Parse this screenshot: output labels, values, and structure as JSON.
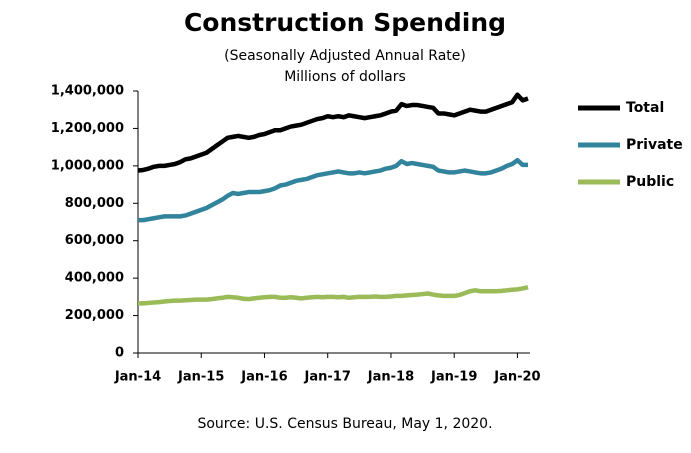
{
  "chart_data": {
    "type": "line",
    "title": "Construction Spending",
    "subtitle": "(Seasonally Adjusted Annual Rate)",
    "y_label": "Millions of dollars",
    "source": "Source: U.S. Census Bureau, May 1, 2020.",
    "categories": [
      "Jan-14",
      null,
      null,
      null,
      null,
      null,
      null,
      null,
      null,
      null,
      null,
      null,
      "Jan-15",
      null,
      null,
      null,
      null,
      null,
      null,
      null,
      null,
      null,
      null,
      null,
      "Jan-16",
      null,
      null,
      null,
      null,
      null,
      null,
      null,
      null,
      null,
      null,
      null,
      "Jan-17",
      null,
      null,
      null,
      null,
      null,
      null,
      null,
      null,
      null,
      null,
      null,
      "Jan-18",
      null,
      null,
      null,
      null,
      null,
      null,
      null,
      null,
      null,
      null,
      null,
      "Jan-19",
      null,
      null,
      null,
      null,
      null,
      null,
      null,
      null,
      null,
      null,
      null,
      "Jan-20",
      null,
      null
    ],
    "series": [
      {
        "name": "Total",
        "color": "#000000",
        "values": [
          975000,
          978000,
          985000,
          995000,
          1000000,
          1000000,
          1005000,
          1010000,
          1020000,
          1035000,
          1040000,
          1050000,
          1060000,
          1070000,
          1090000,
          1110000,
          1130000,
          1150000,
          1155000,
          1160000,
          1155000,
          1150000,
          1155000,
          1165000,
          1170000,
          1180000,
          1190000,
          1190000,
          1200000,
          1210000,
          1215000,
          1220000,
          1230000,
          1240000,
          1250000,
          1255000,
          1265000,
          1260000,
          1265000,
          1260000,
          1270000,
          1265000,
          1260000,
          1255000,
          1260000,
          1265000,
          1270000,
          1280000,
          1290000,
          1295000,
          1330000,
          1320000,
          1325000,
          1325000,
          1320000,
          1315000,
          1310000,
          1280000,
          1280000,
          1275000,
          1270000,
          1280000,
          1290000,
          1300000,
          1295000,
          1290000,
          1290000,
          1300000,
          1310000,
          1320000,
          1330000,
          1340000,
          1380000,
          1350000,
          1360000
        ]
      },
      {
        "name": "Private",
        "color": "#31849b",
        "values": [
          710000,
          710000,
          715000,
          720000,
          725000,
          730000,
          730000,
          730000,
          730000,
          735000,
          745000,
          755000,
          765000,
          775000,
          790000,
          805000,
          820000,
          840000,
          855000,
          850000,
          855000,
          860000,
          860000,
          860000,
          865000,
          870000,
          880000,
          895000,
          900000,
          910000,
          920000,
          925000,
          930000,
          940000,
          950000,
          955000,
          960000,
          965000,
          970000,
          965000,
          960000,
          960000,
          965000,
          960000,
          965000,
          970000,
          975000,
          985000,
          990000,
          1000000,
          1025000,
          1010000,
          1015000,
          1010000,
          1005000,
          1000000,
          995000,
          975000,
          970000,
          965000,
          965000,
          970000,
          975000,
          970000,
          965000,
          960000,
          960000,
          965000,
          975000,
          985000,
          1000000,
          1010000,
          1030000,
          1005000,
          1005000
        ]
      },
      {
        "name": "Public",
        "color": "#9bbb59",
        "values": [
          265000,
          265000,
          268000,
          270000,
          272000,
          275000,
          278000,
          280000,
          280000,
          282000,
          283000,
          285000,
          285000,
          285000,
          288000,
          292000,
          295000,
          300000,
          298000,
          295000,
          290000,
          288000,
          292000,
          295000,
          298000,
          300000,
          300000,
          295000,
          295000,
          298000,
          295000,
          292000,
          295000,
          298000,
          300000,
          298000,
          300000,
          300000,
          298000,
          300000,
          295000,
          298000,
          300000,
          300000,
          300000,
          302000,
          300000,
          300000,
          302000,
          305000,
          305000,
          308000,
          310000,
          312000,
          315000,
          318000,
          312000,
          308000,
          305000,
          305000,
          305000,
          310000,
          320000,
          330000,
          335000,
          330000,
          330000,
          330000,
          330000,
          332000,
          335000,
          338000,
          340000,
          345000,
          352000
        ]
      }
    ],
    "ylim": [
      0,
      1400000
    ],
    "yticks": [
      0,
      {
        "value": 200000,
        "label": "200,000"
      },
      {
        "value": 400000,
        "label": "400,000"
      },
      {
        "value": 600000,
        "label": "600,000"
      },
      {
        "value": 800000,
        "label": "800,000"
      },
      {
        "value": 1000000,
        "label": "1,000,000"
      },
      {
        "value": 1200000,
        "label": "1,200,000"
      },
      {
        "value": 1400000,
        "label": "1,400,000"
      }
    ],
    "legend": "right",
    "grid": false
  }
}
